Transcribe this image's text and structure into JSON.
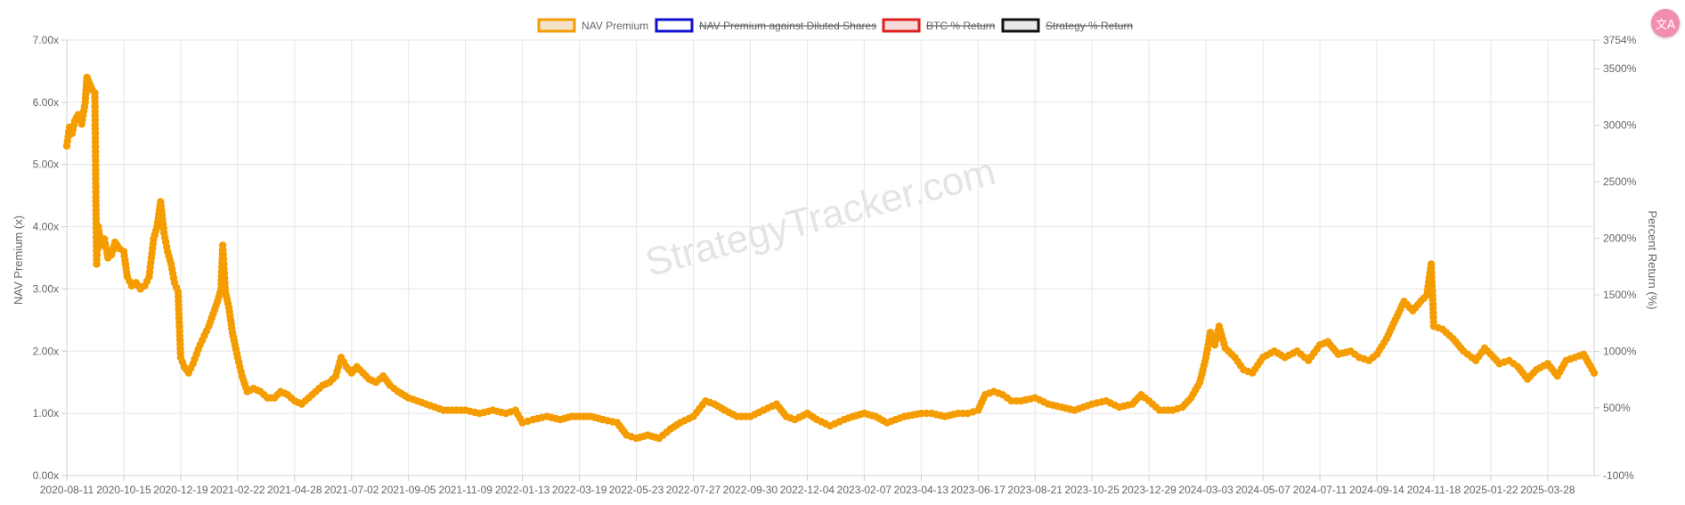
{
  "watermark": "StrategyTracker.com",
  "corner_icon": "translate-icon",
  "chart_data": {
    "type": "line",
    "title": "",
    "ylabel": "NAV Premium (x)",
    "y2label": "Percent Return (%)",
    "ylim": [
      0,
      7
    ],
    "y2lim": [
      -100,
      3754
    ],
    "yticks": [
      "0.00x",
      "1.00x",
      "2.00x",
      "3.00x",
      "4.00x",
      "5.00x",
      "6.00x",
      "7.00x"
    ],
    "y2ticks": [
      "-100%",
      "500%",
      "1000%",
      "1500%",
      "2000%",
      "2500%",
      "3000%",
      "3500%",
      "3754%"
    ],
    "y2tick_values": [
      -100,
      500,
      1000,
      1500,
      2000,
      2500,
      3000,
      3500,
      3754
    ],
    "xticks": [
      "2020-08-11",
      "2020-10-15",
      "2020-12-19",
      "2021-02-22",
      "2021-04-28",
      "2021-07-02",
      "2021-09-05",
      "2021-11-09",
      "2022-01-13",
      "2022-03-19",
      "2022-05-23",
      "2022-07-27",
      "2022-09-30",
      "2022-12-04",
      "2023-02-07",
      "2023-04-13",
      "2023-06-17",
      "2023-08-21",
      "2023-10-25",
      "2023-12-29",
      "2024-03-03",
      "2024-05-07",
      "2024-07-11",
      "2024-09-14",
      "2024-11-18",
      "2025-01-22",
      "2025-03-28"
    ],
    "x_range": [
      "2020-08-11",
      "2025-05-20"
    ],
    "grid": true,
    "legend_position": "top-center",
    "legend": [
      {
        "label": "NAV Premium",
        "border": "#f59c00",
        "fill": "#f5e3c8",
        "hidden": false
      },
      {
        "label": "NAV Premium against Diluted Shares",
        "border": "#1010d0",
        "fill": "#ffffff",
        "hidden": true
      },
      {
        "label": "BTC % Return",
        "border": "#e02020",
        "fill": "#f6dada",
        "hidden": true
      },
      {
        "label": "Strategy % Return",
        "border": "#111111",
        "fill": "#e8e8e8",
        "hidden": true
      }
    ],
    "series": [
      {
        "name": "NAV Premium",
        "color": "#f59c00",
        "points": [
          [
            "2020-08-11",
            5.3
          ],
          [
            "2020-08-14",
            5.6
          ],
          [
            "2020-08-17",
            5.5
          ],
          [
            "2020-08-20",
            5.7
          ],
          [
            "2020-08-24",
            5.8
          ],
          [
            "2020-08-28",
            5.65
          ],
          [
            "2020-09-01",
            6.0
          ],
          [
            "2020-09-03",
            6.4
          ],
          [
            "2020-09-06",
            6.3
          ],
          [
            "2020-09-09",
            6.2
          ],
          [
            "2020-09-12",
            6.15
          ],
          [
            "2020-09-14",
            3.4
          ],
          [
            "2020-09-16",
            4.0
          ],
          [
            "2020-09-19",
            3.7
          ],
          [
            "2020-09-23",
            3.8
          ],
          [
            "2020-09-27",
            3.5
          ],
          [
            "2020-10-01",
            3.55
          ],
          [
            "2020-10-05",
            3.75
          ],
          [
            "2020-10-10",
            3.65
          ],
          [
            "2020-10-15",
            3.6
          ],
          [
            "2020-10-19",
            3.2
          ],
          [
            "2020-10-24",
            3.05
          ],
          [
            "2020-10-29",
            3.1
          ],
          [
            "2020-11-03",
            3.0
          ],
          [
            "2020-11-08",
            3.05
          ],
          [
            "2020-11-13",
            3.2
          ],
          [
            "2020-11-18",
            3.8
          ],
          [
            "2020-11-22",
            4.0
          ],
          [
            "2020-11-26",
            4.4
          ],
          [
            "2020-11-30",
            3.9
          ],
          [
            "2020-12-04",
            3.6
          ],
          [
            "2020-12-08",
            3.4
          ],
          [
            "2020-12-12",
            3.1
          ],
          [
            "2020-12-16",
            2.95
          ],
          [
            "2020-12-19",
            1.9
          ],
          [
            "2020-12-23",
            1.75
          ],
          [
            "2020-12-28",
            1.65
          ],
          [
            "2021-01-02",
            1.8
          ],
          [
            "2021-01-06",
            1.95
          ],
          [
            "2021-01-10",
            2.1
          ],
          [
            "2021-01-15",
            2.25
          ],
          [
            "2021-01-20",
            2.4
          ],
          [
            "2021-01-25",
            2.6
          ],
          [
            "2021-01-30",
            2.8
          ],
          [
            "2021-02-03",
            3.0
          ],
          [
            "2021-02-05",
            3.7
          ],
          [
            "2021-02-08",
            2.95
          ],
          [
            "2021-02-12",
            2.7
          ],
          [
            "2021-02-16",
            2.3
          ],
          [
            "2021-02-22",
            1.9
          ],
          [
            "2021-02-27",
            1.6
          ],
          [
            "2021-03-05",
            1.35
          ],
          [
            "2021-03-12",
            1.4
          ],
          [
            "2021-03-20",
            1.35
          ],
          [
            "2021-03-28",
            1.25
          ],
          [
            "2021-04-05",
            1.25
          ],
          [
            "2021-04-12",
            1.35
          ],
          [
            "2021-04-20",
            1.3
          ],
          [
            "2021-04-28",
            1.2
          ],
          [
            "2021-05-06",
            1.15
          ],
          [
            "2021-05-14",
            1.25
          ],
          [
            "2021-05-22",
            1.35
          ],
          [
            "2021-05-30",
            1.45
          ],
          [
            "2021-06-07",
            1.5
          ],
          [
            "2021-06-14",
            1.6
          ],
          [
            "2021-06-20",
            1.9
          ],
          [
            "2021-06-26",
            1.75
          ],
          [
            "2021-07-02",
            1.65
          ],
          [
            "2021-07-08",
            1.75
          ],
          [
            "2021-07-15",
            1.65
          ],
          [
            "2021-07-22",
            1.55
          ],
          [
            "2021-07-30",
            1.5
          ],
          [
            "2021-08-07",
            1.6
          ],
          [
            "2021-08-15",
            1.45
          ],
          [
            "2021-08-24",
            1.35
          ],
          [
            "2021-09-05",
            1.25
          ],
          [
            "2021-09-15",
            1.2
          ],
          [
            "2021-09-25",
            1.15
          ],
          [
            "2021-10-05",
            1.1
          ],
          [
            "2021-10-15",
            1.05
          ],
          [
            "2021-10-25",
            1.05
          ],
          [
            "2021-11-09",
            1.05
          ],
          [
            "2021-11-25",
            1.0
          ],
          [
            "2021-12-10",
            1.05
          ],
          [
            "2021-12-25",
            1.0
          ],
          [
            "2022-01-05",
            1.05
          ],
          [
            "2022-01-13",
            0.85
          ],
          [
            "2022-01-25",
            0.9
          ],
          [
            "2022-02-10",
            0.95
          ],
          [
            "2022-02-25",
            0.9
          ],
          [
            "2022-03-10",
            0.95
          ],
          [
            "2022-03-19",
            0.95
          ],
          [
            "2022-04-01",
            0.95
          ],
          [
            "2022-04-15",
            0.9
          ],
          [
            "2022-05-01",
            0.85
          ],
          [
            "2022-05-12",
            0.65
          ],
          [
            "2022-05-23",
            0.6
          ],
          [
            "2022-06-05",
            0.65
          ],
          [
            "2022-06-18",
            0.6
          ],
          [
            "2022-07-01",
            0.75
          ],
          [
            "2022-07-12",
            0.85
          ],
          [
            "2022-07-27",
            0.95
          ],
          [
            "2022-08-10",
            1.2
          ],
          [
            "2022-08-20",
            1.15
          ],
          [
            "2022-09-01",
            1.05
          ],
          [
            "2022-09-15",
            0.95
          ],
          [
            "2022-09-30",
            0.95
          ],
          [
            "2022-10-15",
            1.05
          ],
          [
            "2022-10-30",
            1.15
          ],
          [
            "2022-11-10",
            0.95
          ],
          [
            "2022-11-20",
            0.9
          ],
          [
            "2022-12-04",
            1.0
          ],
          [
            "2022-12-15",
            0.9
          ],
          [
            "2022-12-30",
            0.8
          ],
          [
            "2023-01-15",
            0.9
          ],
          [
            "2023-01-25",
            0.95
          ],
          [
            "2023-02-07",
            1.0
          ],
          [
            "2023-02-20",
            0.95
          ],
          [
            "2023-03-05",
            0.85
          ],
          [
            "2023-03-15",
            0.9
          ],
          [
            "2023-03-25",
            0.95
          ],
          [
            "2023-04-13",
            1.0
          ],
          [
            "2023-04-25",
            1.0
          ],
          [
            "2023-05-10",
            0.95
          ],
          [
            "2023-05-25",
            1.0
          ],
          [
            "2023-06-05",
            1.0
          ],
          [
            "2023-06-17",
            1.05
          ],
          [
            "2023-06-25",
            1.3
          ],
          [
            "2023-07-05",
            1.35
          ],
          [
            "2023-07-15",
            1.3
          ],
          [
            "2023-07-25",
            1.2
          ],
          [
            "2023-08-05",
            1.2
          ],
          [
            "2023-08-21",
            1.25
          ],
          [
            "2023-09-05",
            1.15
          ],
          [
            "2023-09-20",
            1.1
          ],
          [
            "2023-10-05",
            1.05
          ],
          [
            "2023-10-25",
            1.15
          ],
          [
            "2023-11-10",
            1.2
          ],
          [
            "2023-11-25",
            1.1
          ],
          [
            "2023-12-10",
            1.15
          ],
          [
            "2023-12-20",
            1.3
          ],
          [
            "2023-12-29",
            1.2
          ],
          [
            "2024-01-10",
            1.05
          ],
          [
            "2024-01-25",
            1.05
          ],
          [
            "2024-02-05",
            1.1
          ],
          [
            "2024-02-15",
            1.25
          ],
          [
            "2024-02-25",
            1.5
          ],
          [
            "2024-03-03",
            1.9
          ],
          [
            "2024-03-08",
            2.3
          ],
          [
            "2024-03-13",
            2.1
          ],
          [
            "2024-03-18",
            2.4
          ],
          [
            "2024-03-25",
            2.05
          ],
          [
            "2024-04-05",
            1.9
          ],
          [
            "2024-04-15",
            1.7
          ],
          [
            "2024-04-25",
            1.65
          ],
          [
            "2024-05-07",
            1.9
          ],
          [
            "2024-05-20",
            2.0
          ],
          [
            "2024-06-01",
            1.9
          ],
          [
            "2024-06-15",
            2.0
          ],
          [
            "2024-06-28",
            1.85
          ],
          [
            "2024-07-11",
            2.1
          ],
          [
            "2024-07-20",
            2.15
          ],
          [
            "2024-08-01",
            1.95
          ],
          [
            "2024-08-15",
            2.0
          ],
          [
            "2024-08-25",
            1.9
          ],
          [
            "2024-09-05",
            1.85
          ],
          [
            "2024-09-14",
            1.95
          ],
          [
            "2024-09-25",
            2.2
          ],
          [
            "2024-10-05",
            2.5
          ],
          [
            "2024-10-15",
            2.8
          ],
          [
            "2024-10-25",
            2.65
          ],
          [
            "2024-11-03",
            2.8
          ],
          [
            "2024-11-10",
            2.9
          ],
          [
            "2024-11-15",
            3.4
          ],
          [
            "2024-11-18",
            2.4
          ],
          [
            "2024-11-28",
            2.35
          ],
          [
            "2024-12-10",
            2.2
          ],
          [
            "2024-12-22",
            2.0
          ],
          [
            "2025-01-05",
            1.85
          ],
          [
            "2025-01-15",
            2.05
          ],
          [
            "2025-01-22",
            1.95
          ],
          [
            "2025-02-01",
            1.8
          ],
          [
            "2025-02-12",
            1.85
          ],
          [
            "2025-02-22",
            1.75
          ],
          [
            "2025-03-05",
            1.55
          ],
          [
            "2025-03-15",
            1.7
          ],
          [
            "2025-03-28",
            1.8
          ],
          [
            "2025-04-08",
            1.6
          ],
          [
            "2025-04-18",
            1.85
          ],
          [
            "2025-04-28",
            1.9
          ],
          [
            "2025-05-08",
            1.95
          ],
          [
            "2025-05-20",
            1.65
          ]
        ]
      }
    ]
  }
}
